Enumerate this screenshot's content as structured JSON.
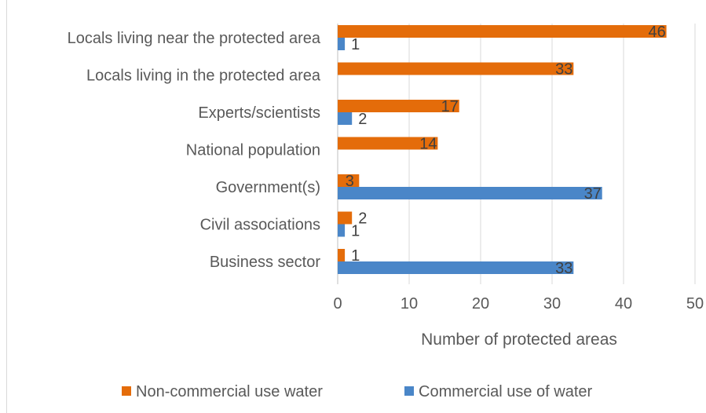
{
  "chart_data": {
    "type": "bar",
    "orientation": "horizontal",
    "categories": [
      "Locals living near the protected area",
      "Locals living in the protected area",
      "Experts/scientists",
      "National population",
      "Government(s)",
      "Civil associations",
      "Business sector"
    ],
    "series": [
      {
        "name": "Non-commercial use water",
        "color": "#E46C0A",
        "values": [
          46,
          33,
          17,
          14,
          3,
          2,
          1
        ]
      },
      {
        "name": "Commercial use of water",
        "color": "#4A86C8",
        "values": [
          1,
          null,
          2,
          null,
          37,
          1,
          33
        ]
      }
    ],
    "xlabel": "Number of protected areas",
    "ylabel": "",
    "xlim": [
      0,
      50
    ],
    "xticks": [
      "0",
      "10",
      "20",
      "30",
      "40",
      "50"
    ],
    "grid": true,
    "legend_position": "bottom"
  }
}
